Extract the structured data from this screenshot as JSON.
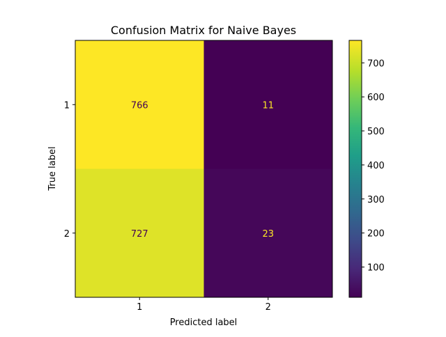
{
  "chart_data": {
    "type": "heatmap",
    "title": "Confusion Matrix for Naive Bayes",
    "xlabel": "Predicted label",
    "ylabel": "True label",
    "x_categories": [
      "1",
      "2"
    ],
    "y_categories": [
      "1",
      "2"
    ],
    "values": [
      [
        766,
        11
      ],
      [
        727,
        23
      ]
    ],
    "colormap": "viridis",
    "colorbar": {
      "range": [
        11,
        766
      ],
      "ticks": [
        100,
        200,
        300,
        400,
        500,
        600,
        700
      ]
    },
    "text_colors": {
      "on_light": "#440154",
      "on_dark": "#fde725"
    },
    "grid": false,
    "legend": "colorbar-right"
  }
}
